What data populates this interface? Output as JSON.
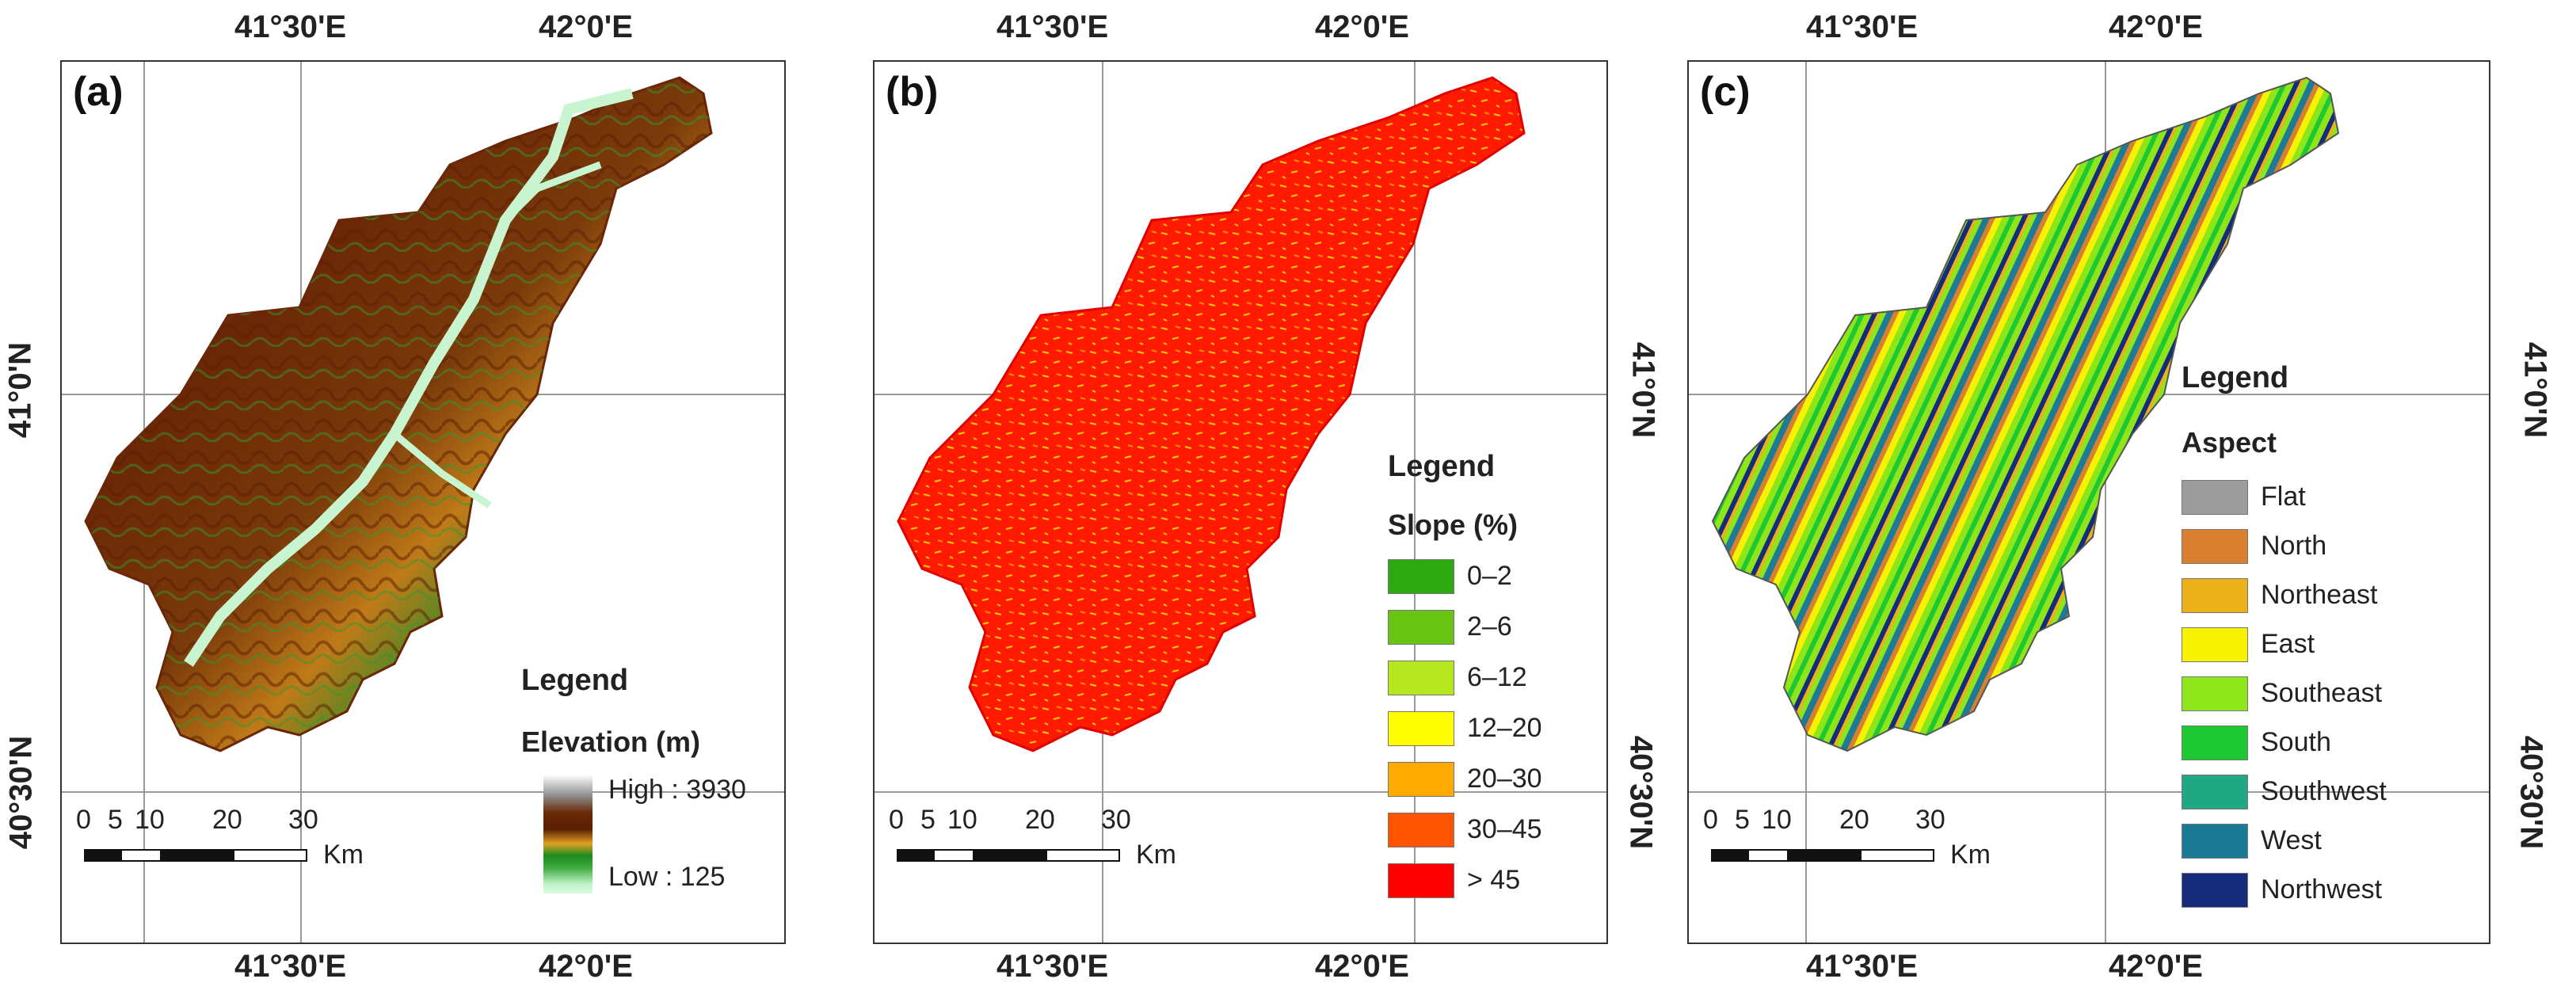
{
  "coords": {
    "lon_left": "41°30'E",
    "lon_right": "42°0'E",
    "lat_top": "41°0'N",
    "lat_bottom": "40°30'N"
  },
  "scalebar": {
    "labels": [
      "0",
      "5",
      "10",
      "20",
      "30"
    ],
    "unit": "Km"
  },
  "panels": [
    {
      "letter": "(a)",
      "legend_title": "Legend",
      "legend_subtitle": "Elevation (m)",
      "high_label": "High : 3930",
      "low_label": "Low : 125"
    },
    {
      "letter": "(b)",
      "legend_title": "Legend",
      "legend_subtitle": "Slope (%)",
      "items": [
        {
          "label": "0–2",
          "color": "#2ea80f"
        },
        {
          "label": "2–6",
          "color": "#69c414"
        },
        {
          "label": "6–12",
          "color": "#b6e61e"
        },
        {
          "label": "12–20",
          "color": "#ffff00"
        },
        {
          "label": "20–30",
          "color": "#ffaa00"
        },
        {
          "label": "30–45",
          "color": "#ff5500"
        },
        {
          "label": "> 45",
          "color": "#ff0000"
        }
      ]
    },
    {
      "letter": "(c)",
      "legend_title": "Legend",
      "legend_subtitle": "Aspect",
      "items": [
        {
          "label": "Flat",
          "color": "#9c9c9c"
        },
        {
          "label": "North",
          "color": "#d98030"
        },
        {
          "label": "Northeast",
          "color": "#ebb01a"
        },
        {
          "label": "East",
          "color": "#f7f200"
        },
        {
          "label": "Southeast",
          "color": "#8ce61a"
        },
        {
          "label": "South",
          "color": "#1ec832"
        },
        {
          "label": "Southwest",
          "color": "#1fa882"
        },
        {
          "label": "West",
          "color": "#1a7a96"
        },
        {
          "label": "Northwest",
          "color": "#142c7a"
        }
      ]
    }
  ]
}
